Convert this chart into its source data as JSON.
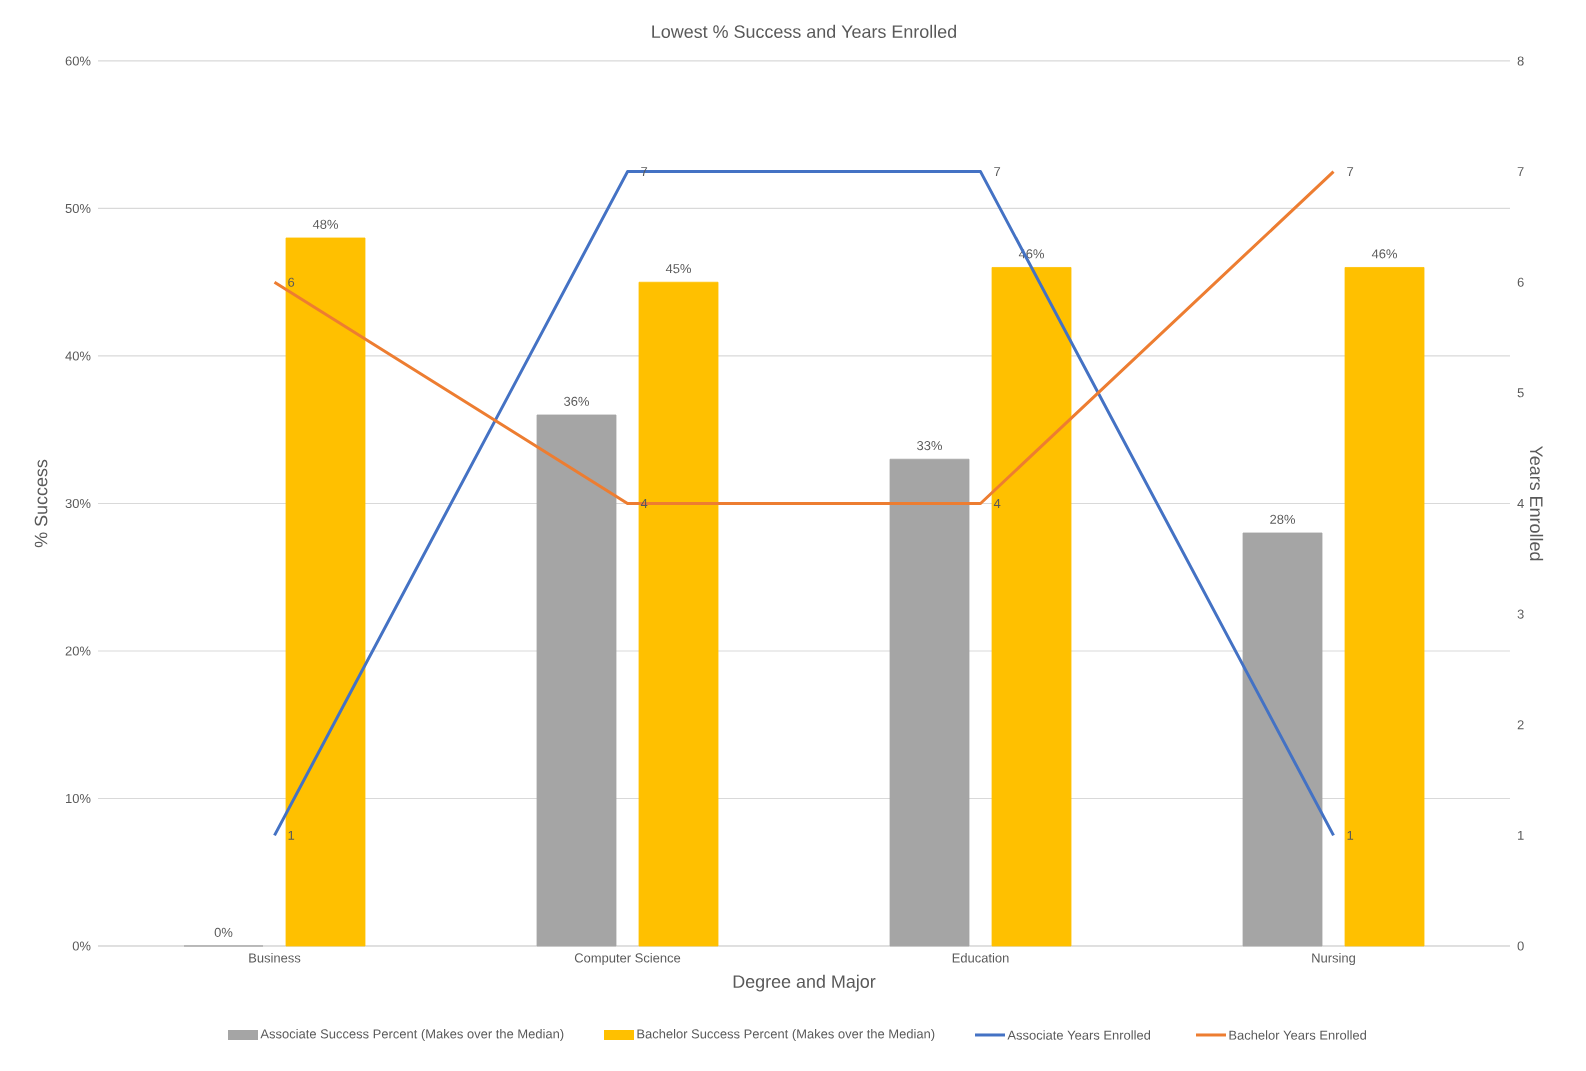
{
  "chart_data": {
    "type": "bar",
    "title": "Lowest % Success and Years Enrolled",
    "xlabel": "Degree and Major",
    "ylabel": "% Success",
    "y2label": "Years Enrolled",
    "categories": [
      "Business",
      "Computer Science",
      "Education",
      "Nursing"
    ],
    "series": [
      {
        "name": "Associate Success Percent (Makes over the Median)",
        "color": "#a5a5a5",
        "values": [
          0,
          36,
          33,
          28
        ],
        "value_labels": [
          "0%",
          "36%",
          "33%",
          "28%"
        ]
      },
      {
        "name": "Bachelor Success Percent (Makes over the Median)",
        "color": "#ffc000",
        "values": [
          48,
          45,
          46,
          46
        ],
        "value_labels": [
          "48%",
          "45%",
          "46%",
          "46%"
        ]
      },
      {
        "name": "Associate Years Enrolled",
        "type": "line",
        "axis": "y2",
        "color": "#4472c4",
        "values": [
          1,
          7,
          7,
          1
        ],
        "value_labels": [
          "1",
          "7",
          "7",
          "1"
        ]
      },
      {
        "name": "Bachelor  Years Enrolled",
        "type": "line",
        "axis": "y2",
        "color": "#ed7d31",
        "values": [
          6,
          4,
          4,
          7
        ],
        "value_labels": [
          "6",
          "4",
          "4",
          "7"
        ]
      }
    ],
    "ylim": [
      0,
      60
    ],
    "yticks": [
      {
        "value": 0,
        "label": "0%"
      },
      {
        "value": 10,
        "label": "10%"
      },
      {
        "value": 20,
        "label": "20%"
      },
      {
        "value": 30,
        "label": "30%"
      },
      {
        "value": 40,
        "label": "40%"
      },
      {
        "value": 50,
        "label": "50%"
      },
      {
        "value": 60,
        "label": "60%"
      }
    ],
    "y2lim": [
      0,
      8
    ],
    "y2ticks": [
      0,
      1,
      2,
      3,
      4,
      5,
      6,
      7,
      8
    ],
    "grid": "y",
    "legend": "bottom"
  }
}
